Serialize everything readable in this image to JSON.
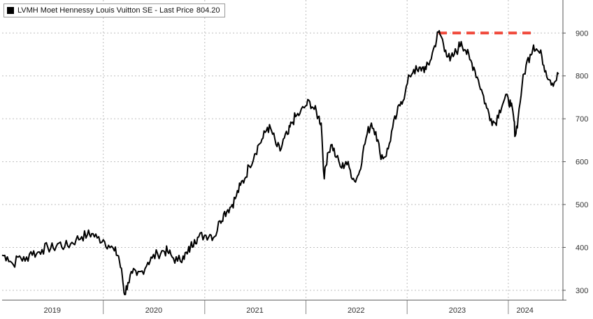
{
  "chart_data": {
    "type": "line",
    "legend": {
      "label": "LVMH Moet Hennessy Louis Vuitton SE - Last Price",
      "value": "804.20",
      "position": "top-left"
    },
    "title": "",
    "xlabel": "",
    "ylabel": "",
    "x_tick_labels": [
      "2019",
      "2020",
      "2021",
      "2022",
      "2023",
      "2024"
    ],
    "x_tick_dates": [
      "2019-07-01",
      "2020-07-01",
      "2021-07-01",
      "2022-07-01",
      "2023-07-01",
      "2024-03-01"
    ],
    "x_boundaries": [
      "2020-01-01",
      "2021-01-01",
      "2022-01-01",
      "2023-01-01",
      "2024-01-01"
    ],
    "xlim": [
      "2019-01-01",
      "2024-07-16"
    ],
    "y_ticks": [
      300,
      400,
      500,
      600,
      700,
      800,
      900
    ],
    "ylim": [
      277,
      977
    ],
    "y_axis_position": "right",
    "grid": true,
    "series": [
      {
        "color": "#000000",
        "points": [
          [
            "2019-01-01",
            382
          ],
          [
            "2019-01-20",
            378
          ],
          [
            "2019-02-10",
            360
          ],
          [
            "2019-03-05",
            380
          ],
          [
            "2019-03-25",
            368
          ],
          [
            "2019-04-15",
            390
          ],
          [
            "2019-05-05",
            385
          ],
          [
            "2019-05-25",
            395
          ],
          [
            "2019-06-15",
            400
          ],
          [
            "2019-07-05",
            398
          ],
          [
            "2019-07-25",
            410
          ],
          [
            "2019-08-15",
            402
          ],
          [
            "2019-09-05",
            408
          ],
          [
            "2019-09-25",
            418
          ],
          [
            "2019-10-15",
            425
          ],
          [
            "2019-11-05",
            430
          ],
          [
            "2019-11-20",
            432
          ],
          [
            "2019-12-10",
            422
          ],
          [
            "2020-01-01",
            418
          ],
          [
            "2020-01-20",
            405
          ],
          [
            "2020-02-10",
            392
          ],
          [
            "2020-02-25",
            380
          ],
          [
            "2020-03-10",
            330
          ],
          [
            "2020-03-18",
            290
          ],
          [
            "2020-03-30",
            318
          ],
          [
            "2020-04-15",
            340
          ],
          [
            "2020-05-01",
            335
          ],
          [
            "2020-05-20",
            345
          ],
          [
            "2020-06-10",
            365
          ],
          [
            "2020-06-25",
            375
          ],
          [
            "2020-07-15",
            385
          ],
          [
            "2020-08-05",
            392
          ],
          [
            "2020-08-20",
            390
          ],
          [
            "2020-09-05",
            378
          ],
          [
            "2020-09-25",
            368
          ],
          [
            "2020-10-15",
            380
          ],
          [
            "2020-10-30",
            385
          ],
          [
            "2020-11-10",
            400
          ],
          [
            "2020-11-25",
            418
          ],
          [
            "2020-12-10",
            424
          ],
          [
            "2020-12-31",
            428
          ],
          [
            "2021-01-20",
            430
          ],
          [
            "2021-02-05",
            425
          ],
          [
            "2021-02-25",
            462
          ],
          [
            "2021-03-10",
            478
          ],
          [
            "2021-03-25",
            488
          ],
          [
            "2021-04-10",
            500
          ],
          [
            "2021-04-25",
            520
          ],
          [
            "2021-05-10",
            545
          ],
          [
            "2021-05-25",
            560
          ],
          [
            "2021-06-10",
            590
          ],
          [
            "2021-06-30",
            618
          ],
          [
            "2021-07-15",
            640
          ],
          [
            "2021-07-30",
            655
          ],
          [
            "2021-08-15",
            680
          ],
          [
            "2021-08-30",
            672
          ],
          [
            "2021-09-15",
            640
          ],
          [
            "2021-09-30",
            625
          ],
          [
            "2021-10-15",
            655
          ],
          [
            "2021-10-30",
            665
          ],
          [
            "2021-11-10",
            690
          ],
          [
            "2021-11-25",
            705
          ],
          [
            "2021-12-10",
            712
          ],
          [
            "2021-12-31",
            730
          ],
          [
            "2022-01-15",
            740
          ],
          [
            "2022-01-31",
            722
          ],
          [
            "2022-02-15",
            705
          ],
          [
            "2022-02-25",
            690
          ],
          [
            "2022-03-08",
            560
          ],
          [
            "2022-03-20",
            620
          ],
          [
            "2022-04-05",
            640
          ],
          [
            "2022-04-20",
            610
          ],
          [
            "2022-05-10",
            585
          ],
          [
            "2022-05-25",
            600
          ],
          [
            "2022-06-10",
            580
          ],
          [
            "2022-06-25",
            555
          ],
          [
            "2022-07-10",
            570
          ],
          [
            "2022-07-25",
            620
          ],
          [
            "2022-08-10",
            665
          ],
          [
            "2022-08-25",
            690
          ],
          [
            "2022-09-10",
            670
          ],
          [
            "2022-09-25",
            620
          ],
          [
            "2022-10-10",
            610
          ],
          [
            "2022-10-25",
            630
          ],
          [
            "2022-11-10",
            680
          ],
          [
            "2022-11-25",
            710
          ],
          [
            "2022-12-10",
            740
          ],
          [
            "2022-12-25",
            760
          ],
          [
            "2023-01-10",
            800
          ],
          [
            "2023-01-25",
            815
          ],
          [
            "2023-02-10",
            810
          ],
          [
            "2023-02-25",
            820
          ],
          [
            "2023-03-10",
            815
          ],
          [
            "2023-03-25",
            835
          ],
          [
            "2023-04-10",
            870
          ],
          [
            "2023-04-24",
            902
          ],
          [
            "2023-05-05",
            890
          ],
          [
            "2023-05-20",
            860
          ],
          [
            "2023-06-05",
            835
          ],
          [
            "2023-06-20",
            850
          ],
          [
            "2023-07-05",
            865
          ],
          [
            "2023-07-15",
            880
          ],
          [
            "2023-07-31",
            860
          ],
          [
            "2023-08-15",
            838
          ],
          [
            "2023-08-30",
            820
          ],
          [
            "2023-09-15",
            790
          ],
          [
            "2023-09-30",
            760
          ],
          [
            "2023-10-15",
            725
          ],
          [
            "2023-10-31",
            700
          ],
          [
            "2023-11-15",
            690
          ],
          [
            "2023-11-30",
            720
          ],
          [
            "2023-12-15",
            740
          ],
          [
            "2023-12-31",
            750
          ],
          [
            "2024-01-10",
            730
          ],
          [
            "2024-01-20",
            705
          ],
          [
            "2024-01-26",
            660
          ],
          [
            "2024-02-05",
            700
          ],
          [
            "2024-02-20",
            780
          ],
          [
            "2024-03-05",
            825
          ],
          [
            "2024-03-20",
            850
          ],
          [
            "2024-04-01",
            872
          ],
          [
            "2024-04-15",
            860
          ],
          [
            "2024-05-01",
            845
          ],
          [
            "2024-05-15",
            812
          ],
          [
            "2024-05-31",
            790
          ],
          [
            "2024-06-15",
            785
          ],
          [
            "2024-06-30",
            804
          ]
        ]
      }
    ],
    "reference_line": {
      "value": 900,
      "start": "2023-04-24",
      "end": "2024-07-16",
      "color": "#f04a3c",
      "style": "dashed"
    }
  }
}
